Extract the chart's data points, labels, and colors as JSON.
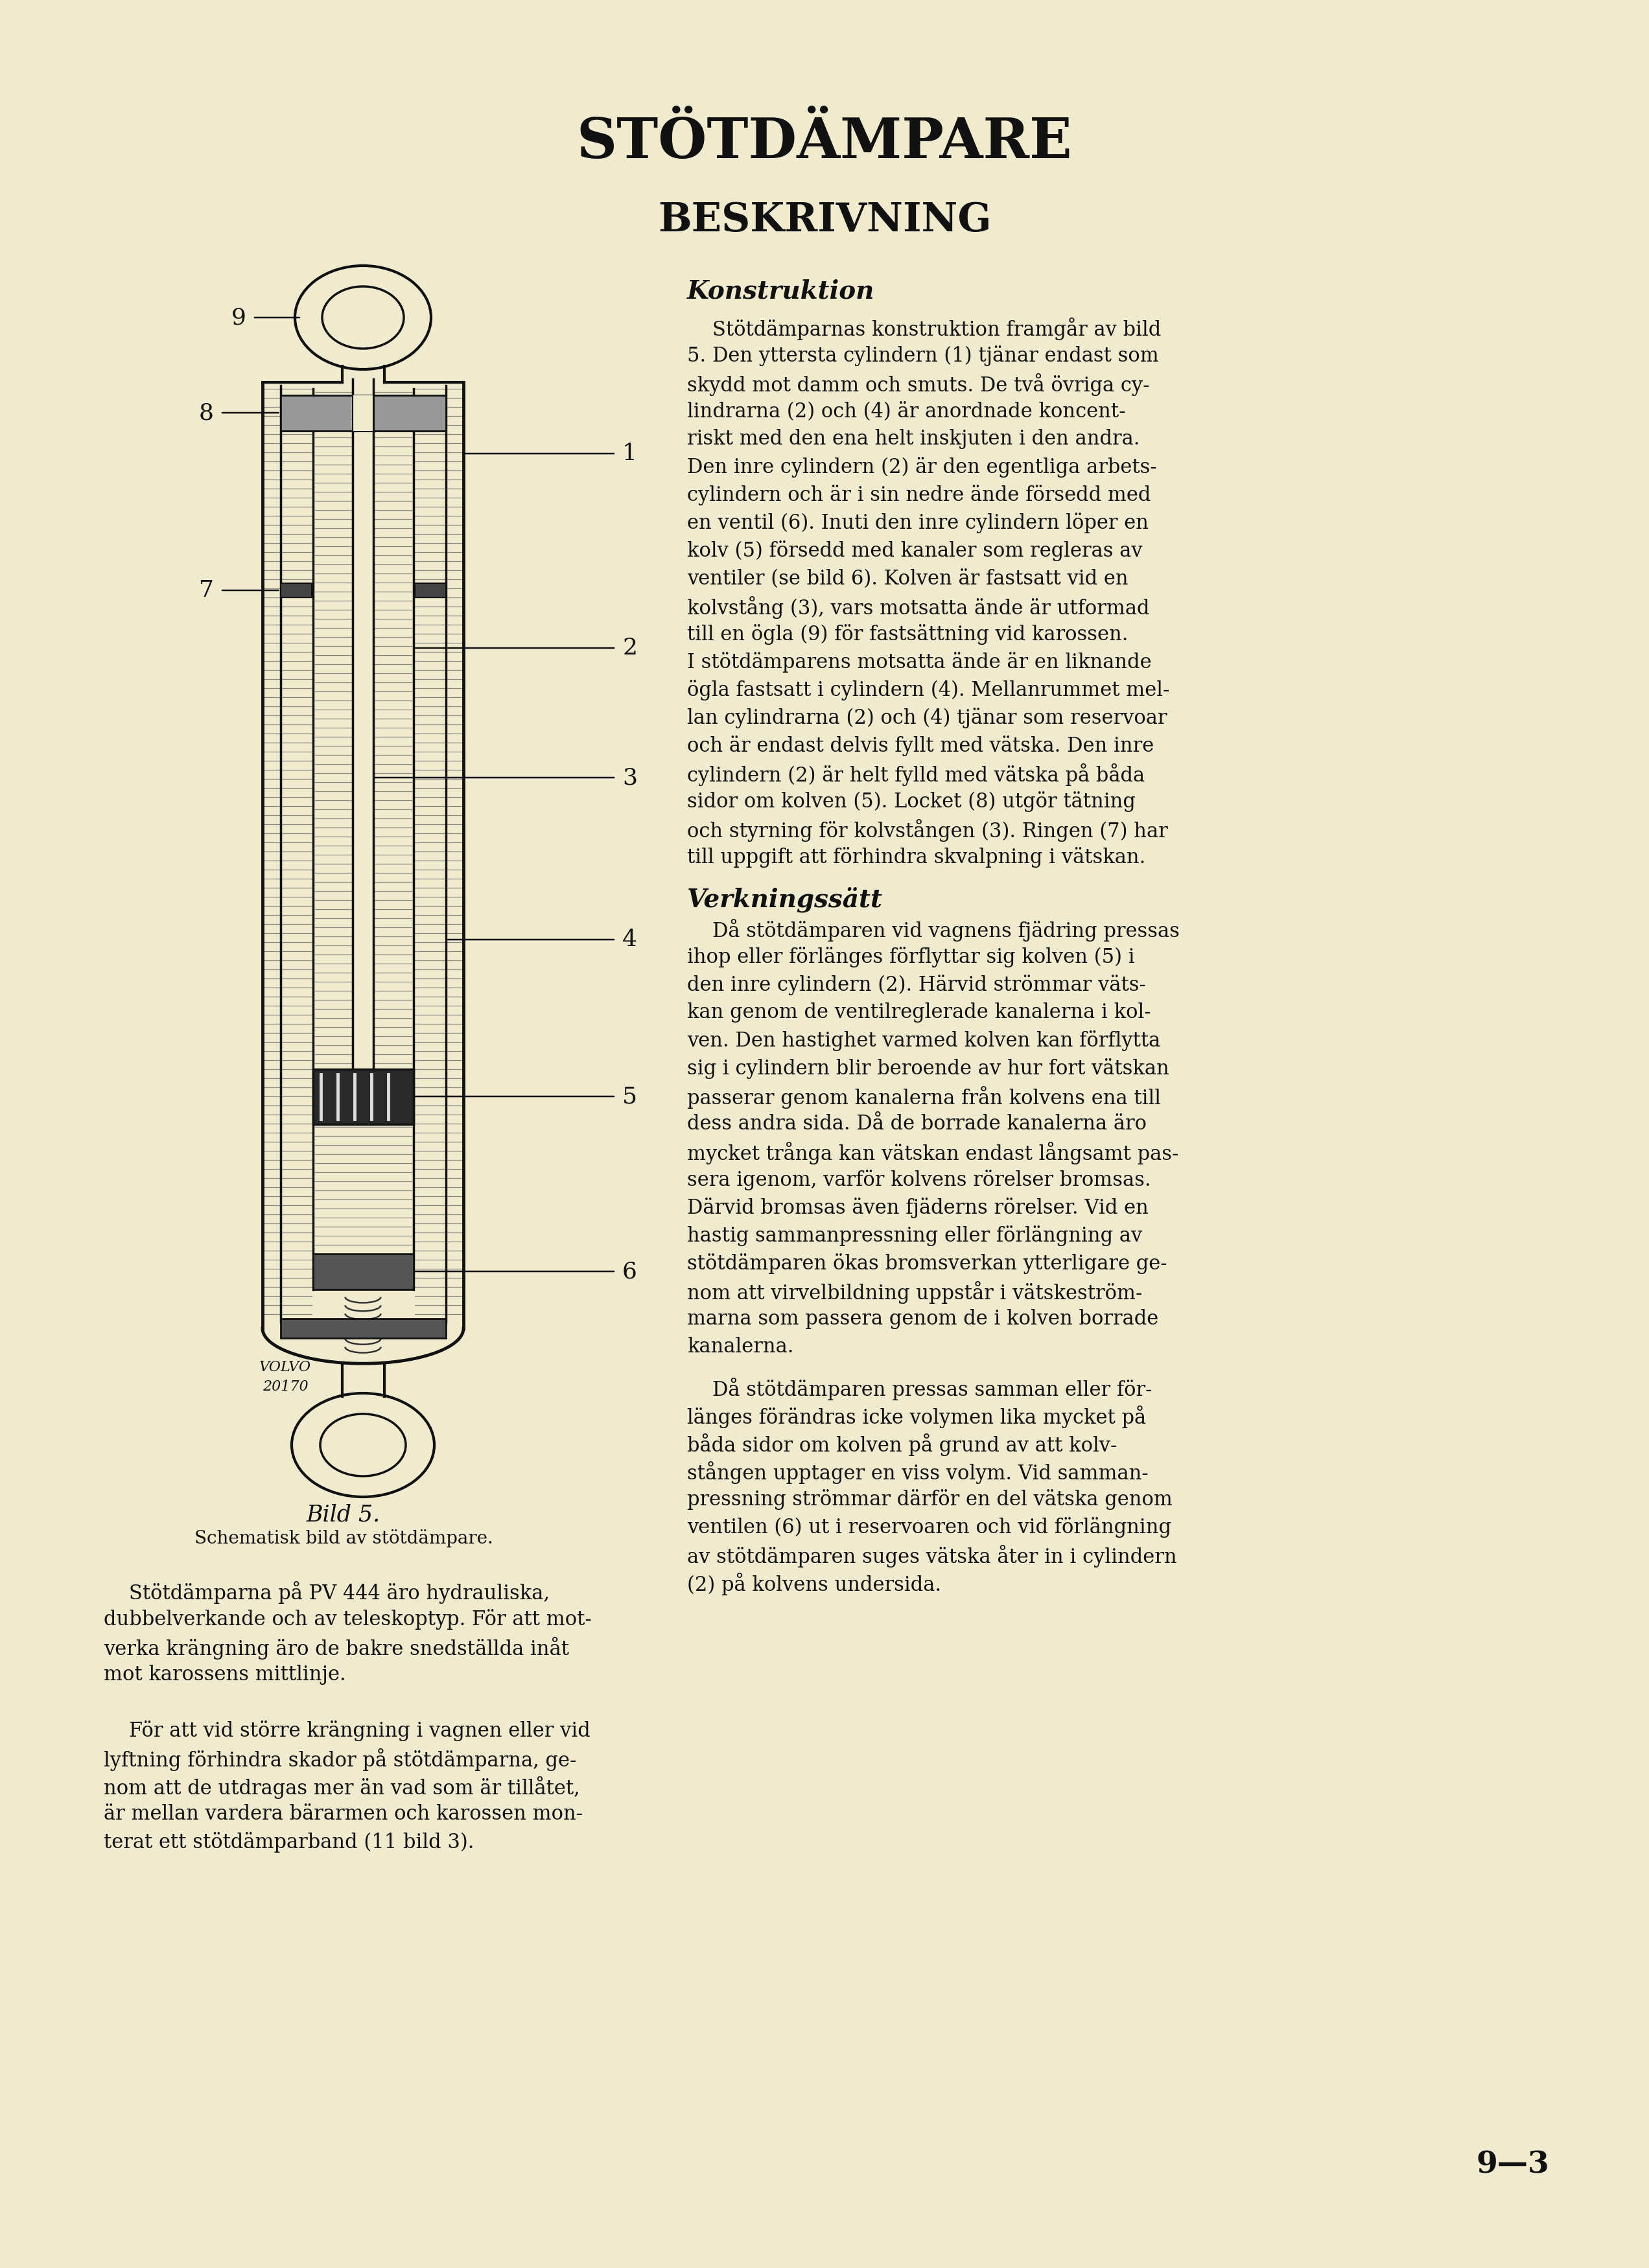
{
  "bg_color": "#f0ebcf",
  "title": "STÖTDÄMPARE",
  "subtitle": "BESKRIVNING",
  "section1_title": "Konstruktion",
  "section2_title": "Verkningssätt",
  "konstruktion_text": [
    "    Stötdämparnas konstruktion framgår av bild",
    "5. Den yttersta cylindern (1) tjänar endast som",
    "skydd mot damm och smuts. De två övriga cy-",
    "lindrarna (2) och (4) är anordnade koncent-",
    "riskt med den ena helt inskjuten i den andra.",
    "Den inre cylindern (2) är den egentliga arbets-",
    "cylindern och är i sin nedre ände försedd med",
    "en ventil (6). Inuti den inre cylindern löper en",
    "kolv (5) försedd med kanaler som regleras av",
    "ventiler (se bild 6). Kolven är fastsatt vid en",
    "kolvstång (3), vars motsatta ände är utformad",
    "till en ögla (9) för fastsättning vid karossen.",
    "I stötdämparens motsatta ände är en liknande",
    "ögla fastsatt i cylindern (4). Mellanrummet mel-",
    "lan cylindrarna (2) och (4) tjänar som reservoar",
    "och är endast delvis fyllt med vätska. Den inre",
    "cylindern (2) är helt fylld med vätska på båda",
    "sidor om kolven (5). Locket (8) utgör tätning",
    "och styrning för kolvstången (3). Ringen (7) har",
    "till uppgift att förhindra skvalpning i vätskan."
  ],
  "verkningssatt_text": [
    "    Då stötdämparen vid vagnens fjädring pressas",
    "ihop eller förlänges förflyttar sig kolven (5) i",
    "den inre cylindern (2). Härvid strömmar väts-",
    "kan genom de ventilreglerade kanalerna i kol-",
    "ven. Den hastighet varmed kolven kan förflytta",
    "sig i cylindern blir beroende av hur fort vätskan",
    "passerar genom kanalerna från kolvens ena till",
    "dess andra sida. Då de borrade kanalerna äro",
    "mycket trånga kan vätskan endast långsamt pas-",
    "sera igenom, varför kolvens rörelser bromsas.",
    "Därvid bromsas även fjäderns rörelser. Vid en",
    "hastig sammanpressning eller förlängning av",
    "stötdämparen ökas bromsverkan ytterligare ge-",
    "nom att virvelbildning uppstår i vätskeström-",
    "marna som passera genom de i kolven borrade",
    "kanalerna."
  ],
  "verkningssatt_text2": [
    "    Då stötdämparen pressas samman eller för-",
    "länges förändras icke volymen lika mycket på",
    "båda sidor om kolven på grund av att kolv-",
    "stången upptager en viss volym. Vid samman-",
    "pressning strömmar därför en del vätska genom",
    "ventilen (6) ut i reservoaren och vid förlängning",
    "av stötdämparen suges vätska åter in i cylindern",
    "(2) på kolvens undersida."
  ],
  "caption_line1": "Bild 5.",
  "caption_line2": "Schematisk bild av stötdämpare.",
  "bottom_text_col1": [
    "    Stötdämparna på PV 444 äro hydrauliska,",
    "dubbelverkande och av teleskoptyp. För att mot-",
    "verka krängning äro de bakre snedställda inåt",
    "mot karossens mittlinje.",
    "",
    "    För att vid större krängning i vagnen eller vid",
    "lyftning förhindra skador på stötdämparna, ge-",
    "nom att de utdragas mer än vad som är tillåtet,",
    "är mellan vardera bärarmen och karossen mon-",
    "terat ett stötdämparband (11 bild 3)."
  ],
  "page_number": "9—3",
  "volvo_text1": "VOLVO",
  "volvo_text2": "20170"
}
